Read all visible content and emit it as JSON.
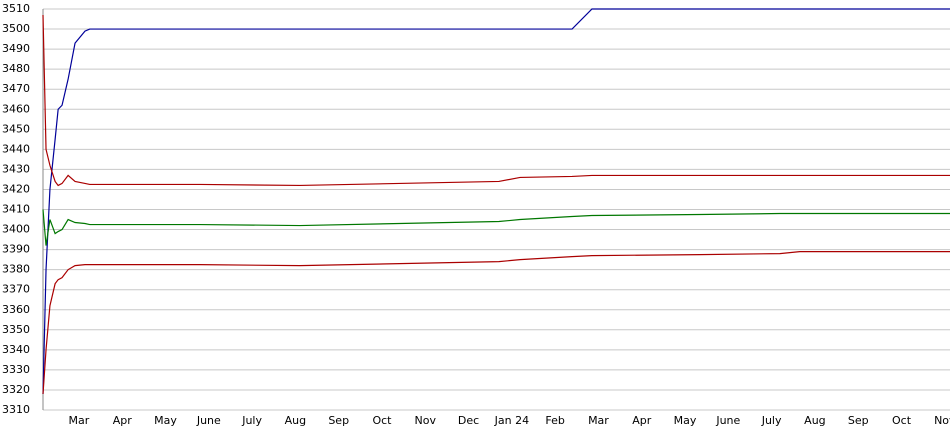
{
  "chart_data": {
    "type": "line",
    "x": [
      0.17,
      0.24,
      0.33,
      0.45,
      0.52,
      0.61,
      0.75,
      0.91,
      1.14,
      1.25,
      3.8,
      6.1,
      8.4,
      10.7,
      11.19,
      12.39,
      12.85,
      15.34,
      17.19,
      17.65,
      21.12
    ],
    "series": [
      {
        "color": "#000099",
        "values": [
          3318,
          3380,
          3420,
          3445,
          3460,
          3462,
          3475,
          3493,
          3499,
          3500,
          3500,
          3500,
          3500,
          3500,
          3500,
          3500,
          3510,
          3510,
          3510,
          3510,
          3510
        ]
      },
      {
        "color": "#aa0000",
        "values": [
          3507,
          3440,
          3432,
          3424,
          3422,
          3423,
          3427,
          3424,
          3423,
          3422.5,
          3422.5,
          3422,
          3423,
          3424,
          3426,
          3426.5,
          3427,
          3427,
          3427,
          3427,
          3427
        ]
      },
      {
        "color": "#007700",
        "values": [
          3410,
          3392,
          3405,
          3398,
          3399,
          3400,
          3405,
          3403.5,
          3403,
          3402.5,
          3402.5,
          3402,
          3403,
          3404,
          3405,
          3406.5,
          3407,
          3407.5,
          3408,
          3408,
          3408
        ]
      },
      {
        "color": "#aa0000",
        "values": [
          3318,
          3340,
          3362,
          3373,
          3375,
          3376,
          3380,
          3382,
          3382.5,
          3382.5,
          3382.5,
          3382,
          3383,
          3384,
          3385,
          3386.5,
          3387,
          3387.5,
          3388,
          3389,
          3389
        ]
      }
    ],
    "xlim": [
      0.17,
      21.12
    ],
    "ylim": [
      3310,
      3510
    ],
    "xticks": [
      {
        "value": 1,
        "label": "Mar"
      },
      {
        "value": 2,
        "label": "Apr"
      },
      {
        "value": 3,
        "label": "May"
      },
      {
        "value": 4,
        "label": "June"
      },
      {
        "value": 5,
        "label": "July"
      },
      {
        "value": 6,
        "label": "Aug"
      },
      {
        "value": 7,
        "label": "Sep"
      },
      {
        "value": 8,
        "label": "Oct"
      },
      {
        "value": 9,
        "label": "Nov"
      },
      {
        "value": 10,
        "label": "Dec"
      },
      {
        "value": 11,
        "label": "Jan 24"
      },
      {
        "value": 12,
        "label": "Feb"
      },
      {
        "value": 13,
        "label": "Mar"
      },
      {
        "value": 14,
        "label": "Apr"
      },
      {
        "value": 15,
        "label": "May"
      },
      {
        "value": 16,
        "label": "June"
      },
      {
        "value": 17,
        "label": "July"
      },
      {
        "value": 18,
        "label": "Aug"
      },
      {
        "value": 19,
        "label": "Sep"
      },
      {
        "value": 20,
        "label": "Oct"
      },
      {
        "value": 21,
        "label": "Nov"
      }
    ],
    "yticks": [
      3310,
      3320,
      3330,
      3340,
      3350,
      3360,
      3370,
      3380,
      3390,
      3400,
      3410,
      3420,
      3430,
      3440,
      3450,
      3460,
      3470,
      3480,
      3490,
      3500,
      3510
    ],
    "grid": true
  }
}
